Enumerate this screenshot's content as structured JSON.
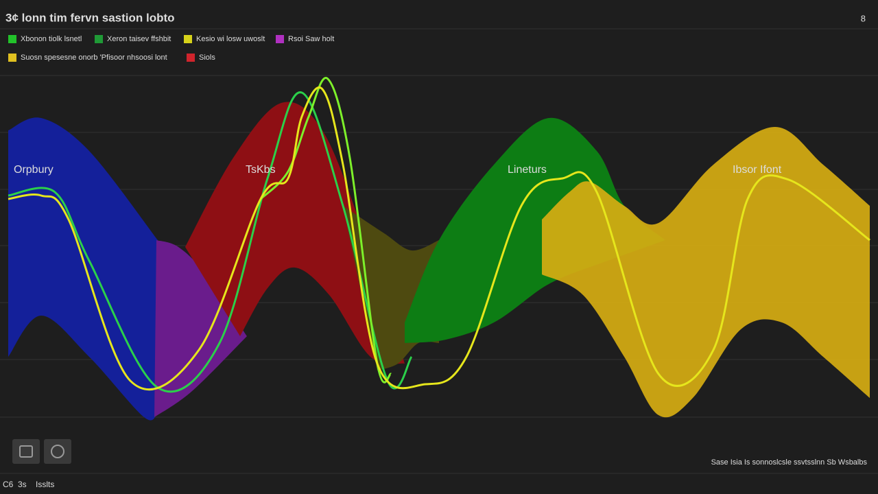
{
  "header": {
    "title": "3¢ lonn tim fervn sastion lobto",
    "corner": "8"
  },
  "legend": {
    "items": [
      {
        "label": "Xbonon tiolk lsnetl",
        "color": "#22c22a"
      },
      {
        "label": "Xeron taisev ffshbit",
        "color": "#1f9a36"
      },
      {
        "label": "Kesio wi losw uwoslt",
        "color": "#d6d21a"
      },
      {
        "label": "Rsoi Saw holt",
        "color": "#b030c0"
      },
      {
        "label": "Suosn spesesne onorb 'Pfisoor nhsoosi lont",
        "color": "#e0c020"
      },
      {
        "label": "Siols",
        "color": "#d0242c"
      }
    ]
  },
  "bands": {
    "labels": [
      "Orpbury",
      "TsKbs",
      "Lineturs",
      "Ibsor Ifont"
    ]
  },
  "footer": {
    "left": [
      "C6",
      "3s",
      "Isslts"
    ],
    "right": "Sase Isia Is sonnoslcsle ssvtsslnn Sb Wsbalbs"
  }
}
